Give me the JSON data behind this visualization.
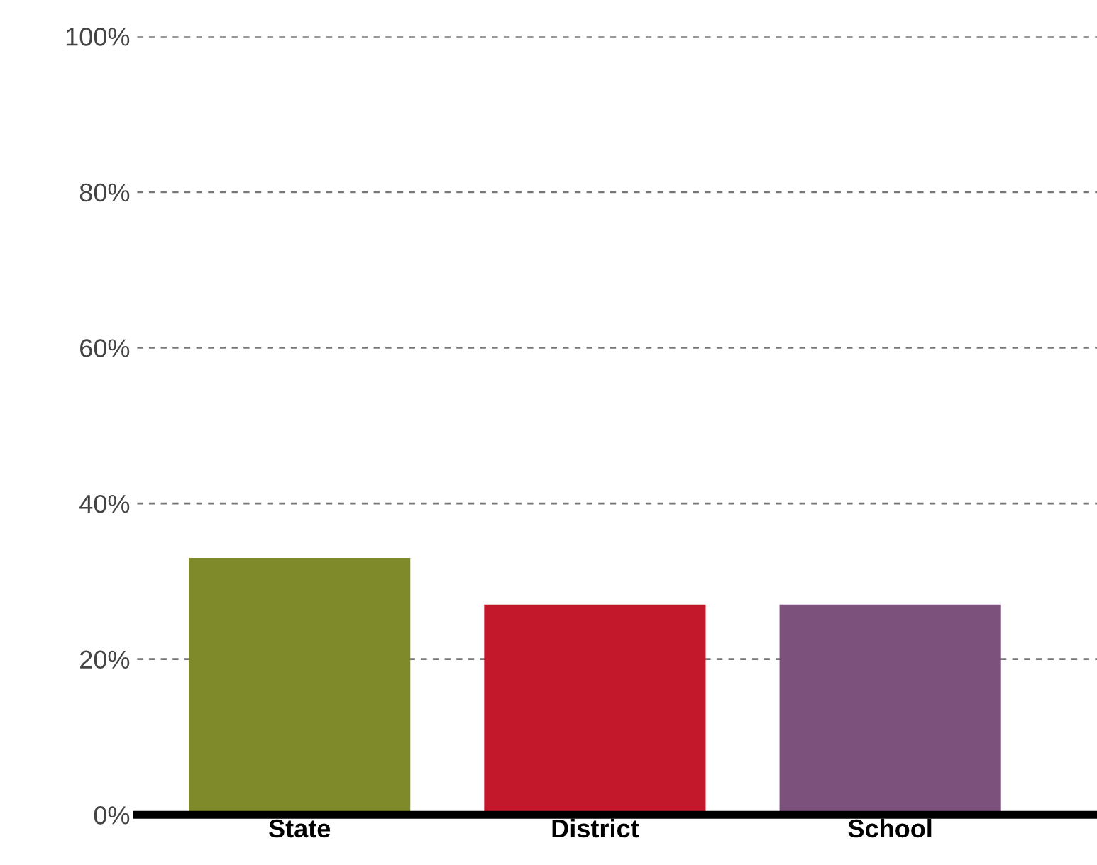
{
  "chart_data": {
    "type": "bar",
    "categories": [
      "State",
      "District",
      "School"
    ],
    "values": [
      33,
      27,
      27
    ],
    "colors": [
      "#7f8a2a",
      "#c3182c",
      "#7c527c"
    ],
    "ylim": [
      0,
      100
    ],
    "yticks": [
      {
        "value": 0,
        "label": "0%"
      },
      {
        "value": 20,
        "label": "20%"
      },
      {
        "value": 40,
        "label": "40%"
      },
      {
        "value": 60,
        "label": "60%"
      },
      {
        "value": 80,
        "label": "80%"
      },
      {
        "value": 100,
        "label": "100%"
      }
    ],
    "grid": "y"
  }
}
